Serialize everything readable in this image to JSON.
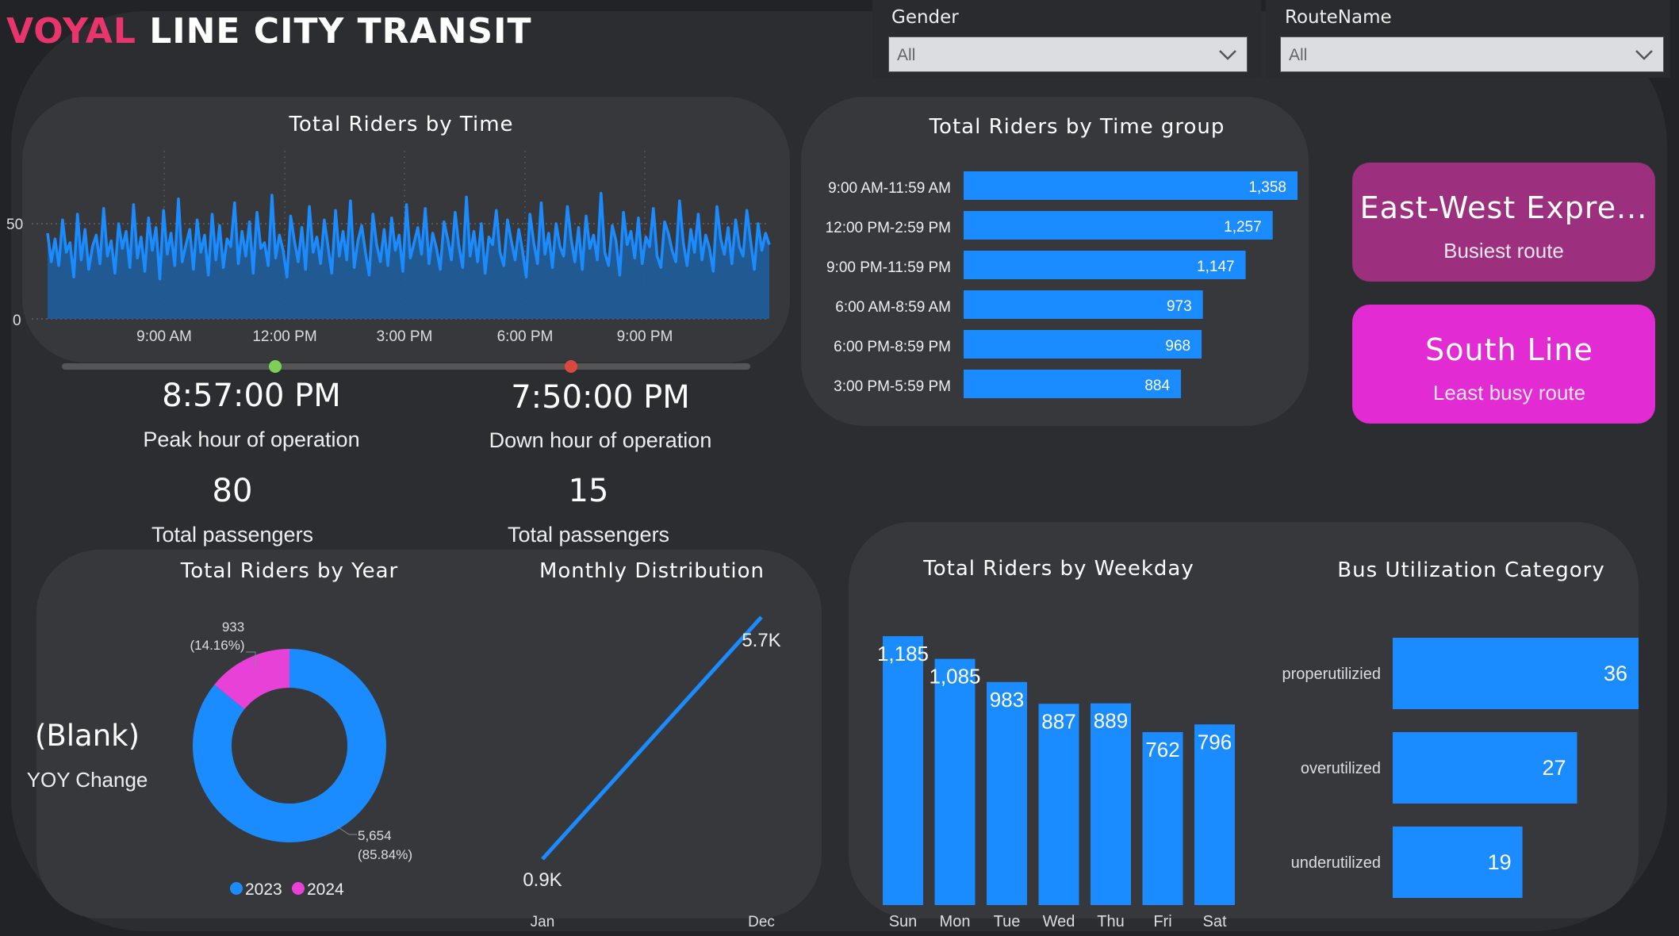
{
  "header": {
    "brand_word1": "VOYAL",
    "brand_word2": "LINE CITY TRANSIT"
  },
  "filters": {
    "gender": {
      "label": "Gender",
      "value": "All"
    },
    "route": {
      "label": "RouteName",
      "value": "All"
    }
  },
  "time_chart": {
    "title": "Total Riders by Time",
    "y_ticks": [
      "50",
      "0"
    ],
    "x_ticks": [
      "9:00 AM",
      "12:00 PM",
      "3:00 PM",
      "6:00 PM",
      "9:00 PM"
    ],
    "slider": {
      "start": 0.31,
      "end": 0.74
    }
  },
  "peak": {
    "time": "8:57:00 PM",
    "label": "Peak hour of operation",
    "count": "80",
    "count_label": "Total passengers"
  },
  "down": {
    "time": "7:50:00 PM",
    "label": "Down hour of operation",
    "count": "15",
    "count_label": "Total passengers"
  },
  "time_group_chart": {
    "title": "Total Riders by Time group",
    "categories": [
      "9:00 AM-11:59 AM",
      "12:00 PM-2:59 PM",
      "9:00 PM-11:59 PM",
      "6:00 AM-8:59 AM",
      "6:00 PM-8:59 PM",
      "3:00 PM-5:59 PM"
    ],
    "values": [
      1358,
      1257,
      1147,
      973,
      968,
      884
    ],
    "labels": [
      "1,358",
      "1,257",
      "1,147",
      "973",
      "968",
      "884"
    ],
    "color": "#1a8cff"
  },
  "busiest": {
    "route": "East-West Expre...",
    "label": "Busiest route",
    "color": "#9c2f7e"
  },
  "least": {
    "route": "South Line",
    "label": "Least busy route",
    "color": "#e22bd3"
  },
  "year_chart": {
    "title": "Total Riders by Year",
    "blank": "(Blank)",
    "yoy_label": "YOY Change",
    "slices": [
      {
        "year": "2023",
        "value": 5654,
        "label": "5,654",
        "pct": "(85.84%)",
        "color": "#1a8cff"
      },
      {
        "year": "2024",
        "value": 933,
        "label": "933",
        "pct": "(14.16%)",
        "color": "#e841d8"
      }
    ]
  },
  "monthly_chart": {
    "title": "Monthly Distribution",
    "x_labels": [
      "Jan",
      "Dec"
    ],
    "start_label": "0.9K",
    "end_label": "5.7K"
  },
  "weekday_chart": {
    "title": "Total Riders by Weekday",
    "categories": [
      "Sun",
      "Mon",
      "Tue",
      "Wed",
      "Thu",
      "Fri",
      "Sat"
    ],
    "values": [
      1185,
      1085,
      983,
      887,
      889,
      762,
      796
    ],
    "labels": [
      "1,185",
      "1,085",
      "983",
      "887",
      "889",
      "762",
      "796"
    ]
  },
  "util_chart": {
    "title": "Bus Utilization Category",
    "categories": [
      "properutilizied",
      "overutilized",
      "underutilized"
    ],
    "values": [
      36,
      27,
      19
    ],
    "labels": [
      "36",
      "27",
      "19"
    ]
  },
  "chart_data": [
    {
      "type": "area",
      "title": "Total Riders by Time",
      "x_ticks": [
        "9:00 AM",
        "12:00 PM",
        "3:00 PM",
        "6:00 PM",
        "9:00 PM"
      ],
      "y_ticks": [
        0,
        50
      ],
      "ylim": [
        0,
        80
      ],
      "y": [
        45,
        30,
        42,
        28,
        52,
        35,
        40,
        22,
        55,
        31,
        47,
        26,
        38,
        44,
        29,
        58,
        33,
        41,
        24,
        50,
        37,
        46,
        27,
        60,
        32,
        43,
        25,
        53,
        36,
        48,
        21,
        57,
        34,
        45,
        28,
        63,
        30,
        39,
        47,
        26,
        52,
        35,
        44,
        23,
        55,
        31,
        49,
        27,
        42,
        38,
        61,
        29,
        46,
        33,
        51,
        24,
        56,
        37,
        40,
        28,
        65,
        32,
        44,
        36,
        22,
        54,
        41,
        30,
        48,
        26,
        59,
        35,
        43,
        29,
        52,
        38,
        24,
        57,
        33,
        46,
        31,
        62,
        27,
        41,
        49,
        35,
        23,
        55,
        39,
        30,
        47,
        28,
        53,
        36,
        44,
        25,
        60,
        32,
        40,
        48,
        34,
        58,
        29,
        45,
        37,
        26,
        51,
        42,
        31,
        56,
        38,
        27,
        64,
        33,
        46,
        30,
        50,
        24,
        43,
        39,
        57,
        35,
        28,
        52,
        41,
        31,
        47,
        36,
        22,
        55,
        40,
        29,
        61,
        34,
        45,
        27,
        50,
        38,
        33,
        59,
        42,
        30,
        48,
        26,
        54,
        37,
        44,
        31,
        66,
        35,
        28,
        49,
        41,
        23,
        56,
        39,
        46,
        32,
        53,
        29,
        43,
        38,
        58,
        33,
        27,
        51,
        45,
        36,
        30,
        62,
        40,
        28,
        47,
        35,
        55,
        31,
        44,
        37,
        25,
        59,
        42,
        34,
        48,
        29,
        52,
        38,
        33,
        57,
        41,
        26,
        50,
        36,
        45,
        39
      ]
    },
    {
      "type": "bar",
      "title": "Total Riders by Time group",
      "categories": [
        "9:00 AM-11:59 AM",
        "12:00 PM-2:59 PM",
        "9:00 PM-11:59 PM",
        "6:00 AM-8:59 AM",
        "6:00 PM-8:59 PM",
        "3:00 PM-5:59 PM"
      ],
      "values": [
        1358,
        1257,
        1147,
        973,
        968,
        884
      ]
    },
    {
      "type": "pie",
      "title": "Total Riders by Year",
      "categories": [
        "2023",
        "2024"
      ],
      "values": [
        5654,
        933
      ]
    },
    {
      "type": "line",
      "title": "Monthly Distribution",
      "categories": [
        "Jan",
        "Dec"
      ],
      "values": [
        900,
        5700
      ]
    },
    {
      "type": "bar",
      "title": "Total Riders by Weekday",
      "categories": [
        "Sun",
        "Mon",
        "Tue",
        "Wed",
        "Thu",
        "Fri",
        "Sat"
      ],
      "values": [
        1185,
        1085,
        983,
        887,
        889,
        762,
        796
      ]
    },
    {
      "type": "bar",
      "title": "Bus Utilization Category",
      "categories": [
        "properutilizied",
        "overutilized",
        "underutilized"
      ],
      "values": [
        36,
        27,
        19
      ]
    }
  ]
}
